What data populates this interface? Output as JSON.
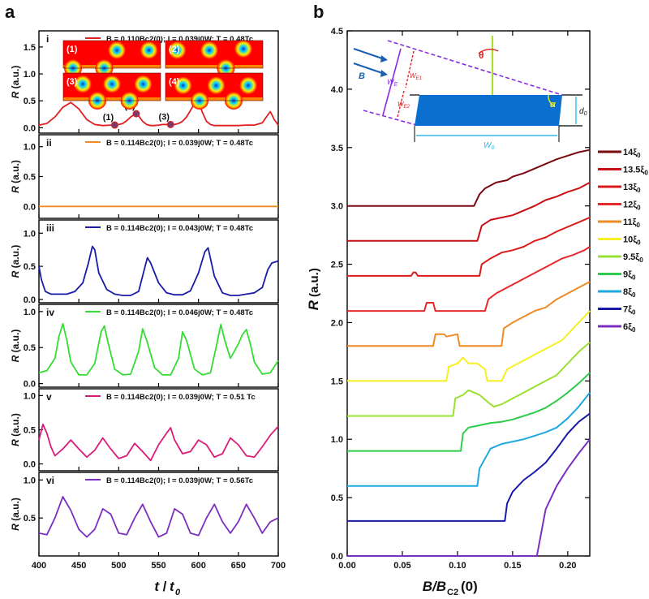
{
  "panel_a": {
    "label": "a",
    "xlabel_main": "t",
    "xlabel_sub": "0",
    "xlabel_sep": "/",
    "ylabel": "R",
    "ylabel_unit": "(a.u.)",
    "xlim": [
      400,
      700
    ],
    "xticks": [
      "400",
      "450",
      "500",
      "550",
      "600",
      "650",
      "700"
    ],
    "inset_labels": [
      "(1)",
      "(2)",
      "(3)",
      "(4)"
    ],
    "colors": {
      "inset_bg": "#ff0000",
      "inset_mid": "#ffee00",
      "inset_ring": "#00d0ff",
      "inset_core": "#1030c0"
    }
  },
  "panel_b": {
    "label": "b",
    "xlabel": "B/B",
    "xlabel_sub": "C2",
    "xlabel_tail": "(0)",
    "ylabel": "R",
    "ylabel_unit": "(a.u.)",
    "xlim": [
      0.0,
      0.22
    ],
    "ylim": [
      0.0,
      4.5
    ],
    "xticks": [
      "0.00",
      "0.05",
      "0.10",
      "0.15",
      "0.20"
    ],
    "yticks": [
      "0.0",
      "0.5",
      "1.0",
      "1.5",
      "2.0",
      "2.5",
      "3.0",
      "3.5",
      "4.0",
      "4.5"
    ],
    "schematic": {
      "B": "B",
      "theta": "θ",
      "alpha": "α",
      "WE": "W",
      "WE_sub": "E",
      "WE1": "W",
      "WE1_sub": "E1",
      "WE2": "W",
      "WE2_sub": "E2",
      "W0": "W",
      "W0_sub": "0",
      "d0": "d",
      "d0_sub": "0"
    }
  },
  "chart_data": [
    {
      "type": "line",
      "title": "i",
      "legend": "B = 0.110Bc2(0); I = 0.039j0W; T = 0.48Tc",
      "color": "#e02020",
      "xlabel": "t/t0",
      "ylabel": "R (a.u.)",
      "xlim": [
        400,
        700
      ],
      "ylim": [
        -0.1,
        1.8
      ],
      "yticks": [
        "0.0",
        "0.5",
        "1.0",
        "1.5"
      ],
      "x": [
        400,
        410,
        420,
        430,
        440,
        450,
        460,
        470,
        480,
        490,
        495,
        500,
        505,
        510,
        515,
        520,
        522,
        525,
        530,
        535,
        540,
        545,
        550,
        555,
        560,
        565,
        570,
        575,
        580,
        585,
        590,
        595,
        598,
        600,
        605,
        610,
        615,
        620,
        630,
        640,
        650,
        660,
        670,
        680,
        685,
        690,
        695,
        700
      ],
      "y": [
        0.05,
        0.08,
        0.2,
        0.38,
        0.47,
        0.35,
        0.15,
        0.06,
        0.04,
        0.05,
        0.05,
        0.06,
        0.08,
        0.13,
        0.2,
        0.25,
        0.26,
        0.22,
        0.12,
        0.06,
        0.04,
        0.04,
        0.05,
        0.06,
        0.06,
        0.06,
        0.06,
        0.08,
        0.12,
        0.2,
        0.32,
        0.45,
        0.5,
        0.48,
        0.28,
        0.12,
        0.06,
        0.04,
        0.04,
        0.04,
        0.04,
        0.05,
        0.05,
        0.09,
        0.2,
        0.3,
        0.15,
        0.05
      ],
      "markers": [
        {
          "label": "(1)",
          "x": 495,
          "y": 0.05
        },
        {
          "label": "(2)",
          "x": 522,
          "y": 0.26
        },
        {
          "label": "(3)",
          "x": 565,
          "y": 0.06
        },
        {
          "label": "(4)",
          "x": 598,
          "y": 0.5
        }
      ]
    },
    {
      "type": "line",
      "title": "ii",
      "legend": "B = 0.114Bc2(0); I = 0.039j0W; T = 0.48Tc",
      "color": "#f08a24",
      "xlabel": "t/t0",
      "ylabel": "R (a.u.)",
      "xlim": [
        400,
        700
      ],
      "ylim": [
        -0.2,
        1.2
      ],
      "yticks": [
        "0.0",
        "0.5",
        "1.0"
      ],
      "x": [
        400,
        700
      ],
      "y": [
        0.0,
        0.0
      ]
    },
    {
      "type": "line",
      "title": "iii",
      "legend": "B = 0.114Bc2(0); I = 0.043j0W; T = 0.48Tc",
      "color": "#1a1aa8",
      "xlabel": "t/t0",
      "ylabel": "R (a.u.)",
      "xlim": [
        400,
        700
      ],
      "ylim": [
        -0.05,
        1.2
      ],
      "yticks": [
        "0.0",
        "0.5",
        "1.0"
      ],
      "x": [
        400,
        403,
        408,
        415,
        425,
        435,
        445,
        455,
        462,
        467,
        470,
        475,
        485,
        495,
        505,
        515,
        525,
        532,
        536,
        540,
        550,
        560,
        570,
        580,
        590,
        600,
        608,
        612,
        620,
        630,
        640,
        650,
        660,
        670,
        680,
        687,
        692,
        700
      ],
      "y": [
        0.5,
        0.3,
        0.12,
        0.08,
        0.08,
        0.08,
        0.12,
        0.25,
        0.55,
        0.8,
        0.75,
        0.4,
        0.15,
        0.08,
        0.06,
        0.06,
        0.12,
        0.45,
        0.63,
        0.55,
        0.25,
        0.1,
        0.07,
        0.07,
        0.13,
        0.4,
        0.72,
        0.78,
        0.35,
        0.1,
        0.06,
        0.06,
        0.08,
        0.1,
        0.18,
        0.45,
        0.55,
        0.58
      ]
    },
    {
      "type": "line",
      "title": "iv",
      "legend": "B = 0.114Bc2(0); I = 0.046j0W; T = 0.48Tc",
      "color": "#33dd33",
      "xlabel": "t/t0",
      "ylabel": "R (a.u.)",
      "xlim": [
        400,
        700
      ],
      "ylim": [
        -0.05,
        1.1
      ],
      "yticks": [
        "0.0",
        "0.5",
        "1.0"
      ],
      "x": [
        400,
        410,
        420,
        425,
        430,
        435,
        440,
        450,
        460,
        470,
        478,
        482,
        487,
        495,
        505,
        515,
        525,
        530,
        535,
        545,
        555,
        565,
        575,
        580,
        585,
        595,
        605,
        615,
        623,
        628,
        633,
        640,
        650,
        655,
        660,
        665,
        670,
        680,
        690,
        700
      ],
      "y": [
        0.15,
        0.18,
        0.35,
        0.65,
        0.83,
        0.6,
        0.3,
        0.12,
        0.12,
        0.28,
        0.72,
        0.8,
        0.55,
        0.2,
        0.12,
        0.13,
        0.45,
        0.76,
        0.6,
        0.22,
        0.12,
        0.12,
        0.35,
        0.72,
        0.6,
        0.2,
        0.12,
        0.15,
        0.55,
        0.82,
        0.6,
        0.35,
        0.55,
        0.68,
        0.75,
        0.55,
        0.3,
        0.13,
        0.15,
        0.32
      ]
    },
    {
      "type": "line",
      "title": "v",
      "legend": "B = 0.114Bc2(0); I = 0.039j0W; T = 0.51 Tc",
      "color": "#d81b7a",
      "xlabel": "t/t0",
      "ylabel": "R (a.u.)",
      "xlim": [
        400,
        700
      ],
      "ylim": [
        -0.1,
        1.1
      ],
      "yticks": [
        "0.0",
        "0.5",
        "1.0"
      ],
      "x": [
        400,
        405,
        410,
        415,
        420,
        430,
        440,
        450,
        460,
        470,
        480,
        490,
        500,
        510,
        520,
        530,
        540,
        550,
        560,
        565,
        570,
        580,
        590,
        600,
        610,
        620,
        630,
        640,
        650,
        660,
        670,
        680,
        690,
        700
      ],
      "y": [
        0.35,
        0.58,
        0.45,
        0.25,
        0.12,
        0.22,
        0.35,
        0.22,
        0.1,
        0.2,
        0.38,
        0.22,
        0.08,
        0.12,
        0.3,
        0.18,
        0.05,
        0.28,
        0.45,
        0.53,
        0.35,
        0.15,
        0.18,
        0.35,
        0.28,
        0.1,
        0.15,
        0.38,
        0.28,
        0.12,
        0.1,
        0.25,
        0.42,
        0.55
      ]
    },
    {
      "type": "line",
      "title": "vi",
      "legend": "B = 0.114Bc2(0); I = 0.039j0W; T = 0.56Tc",
      "color": "#7b2fc0",
      "xlabel": "t/t0",
      "ylabel": "R (a.u.)",
      "xlim": [
        400,
        700
      ],
      "ylim": [
        0.0,
        1.1
      ],
      "yticks": [
        "0.5",
        "1.0"
      ],
      "x": [
        400,
        410,
        420,
        430,
        440,
        450,
        460,
        470,
        480,
        490,
        500,
        510,
        520,
        530,
        540,
        550,
        560,
        570,
        580,
        590,
        600,
        610,
        620,
        630,
        640,
        650,
        660,
        670,
        680,
        690,
        700
      ],
      "y": [
        0.3,
        0.28,
        0.5,
        0.78,
        0.6,
        0.35,
        0.25,
        0.35,
        0.62,
        0.55,
        0.3,
        0.28,
        0.5,
        0.68,
        0.45,
        0.25,
        0.3,
        0.62,
        0.55,
        0.3,
        0.27,
        0.5,
        0.68,
        0.45,
        0.3,
        0.45,
        0.68,
        0.5,
        0.3,
        0.45,
        0.5
      ]
    },
    {
      "type": "line",
      "title": "b",
      "xlabel": "B/BC2(0)",
      "ylabel": "R (a.u.)",
      "xlim": [
        0.0,
        0.22
      ],
      "ylim": [
        0.0,
        4.5
      ],
      "series": [
        {
          "name": "14ξ0",
          "legend_main": "14ξ",
          "legend_sub": "0",
          "color": "#7a0a10",
          "x": [
            0.0,
            0.115,
            0.12,
            0.125,
            0.135,
            0.145,
            0.15,
            0.16,
            0.17,
            0.18,
            0.19,
            0.2,
            0.21,
            0.22
          ],
          "y": [
            3.0,
            3.0,
            3.1,
            3.15,
            3.2,
            3.22,
            3.25,
            3.28,
            3.32,
            3.36,
            3.4,
            3.43,
            3.46,
            3.48
          ]
        },
        {
          "name": "13.5ξ0",
          "legend_main": "13.5ξ",
          "legend_sub": "0",
          "color": "#c80f14",
          "x": [
            0.0,
            0.118,
            0.122,
            0.13,
            0.14,
            0.15,
            0.16,
            0.17,
            0.18,
            0.19,
            0.2,
            0.21,
            0.22
          ],
          "y": [
            2.7,
            2.7,
            2.83,
            2.88,
            2.9,
            2.92,
            2.96,
            3.0,
            3.05,
            3.08,
            3.12,
            3.15,
            3.2
          ]
        },
        {
          "name": "13ξ0",
          "legend_main": "13ξ",
          "legend_sub": "0",
          "color": "#dd1a1a",
          "x": [
            0.0,
            0.058,
            0.06,
            0.062,
            0.064,
            0.12,
            0.122,
            0.13,
            0.14,
            0.15,
            0.16,
            0.17,
            0.18,
            0.19,
            0.2,
            0.21,
            0.22
          ],
          "y": [
            2.4,
            2.4,
            2.43,
            2.43,
            2.4,
            2.4,
            2.5,
            2.55,
            2.6,
            2.62,
            2.65,
            2.7,
            2.73,
            2.78,
            2.82,
            2.86,
            2.9
          ]
        },
        {
          "name": "12ξ0",
          "legend_main": "12ξ",
          "legend_sub": "0",
          "color": "#e8282a",
          "x": [
            0.0,
            0.07,
            0.072,
            0.078,
            0.08,
            0.125,
            0.128,
            0.135,
            0.145,
            0.155,
            0.165,
            0.175,
            0.185,
            0.195,
            0.205,
            0.215,
            0.22
          ],
          "y": [
            2.1,
            2.1,
            2.17,
            2.17,
            2.1,
            2.1,
            2.2,
            2.25,
            2.3,
            2.35,
            2.4,
            2.45,
            2.5,
            2.55,
            2.58,
            2.62,
            2.65
          ]
        },
        {
          "name": "11ξ0",
          "legend_main": "11ξ",
          "legend_sub": "0",
          "color": "#f08a24",
          "x": [
            0.0,
            0.078,
            0.08,
            0.088,
            0.09,
            0.1,
            0.102,
            0.14,
            0.142,
            0.15,
            0.16,
            0.17,
            0.18,
            0.19,
            0.2,
            0.21,
            0.22
          ],
          "y": [
            1.8,
            1.8,
            1.9,
            1.9,
            1.88,
            1.9,
            1.8,
            1.8,
            1.95,
            2.0,
            2.05,
            2.1,
            2.13,
            2.2,
            2.25,
            2.3,
            2.35
          ]
        },
        {
          "name": "10ξ0",
          "legend_main": "10ξ",
          "legend_sub": "0",
          "color": "#f5f022",
          "x": [
            0.0,
            0.09,
            0.092,
            0.1,
            0.105,
            0.11,
            0.118,
            0.125,
            0.127,
            0.14,
            0.145,
            0.155,
            0.165,
            0.175,
            0.185,
            0.195,
            0.205,
            0.215,
            0.22
          ],
          "y": [
            1.5,
            1.5,
            1.62,
            1.65,
            1.7,
            1.65,
            1.65,
            1.6,
            1.5,
            1.5,
            1.6,
            1.65,
            1.7,
            1.75,
            1.8,
            1.85,
            1.95,
            2.05,
            2.1
          ]
        },
        {
          "name": "9.5ξ0",
          "legend_main": "9.5ξ",
          "legend_sub": "0",
          "color": "#9ae030",
          "x": [
            0.0,
            0.096,
            0.098,
            0.105,
            0.11,
            0.115,
            0.12,
            0.13,
            0.133,
            0.14,
            0.15,
            0.16,
            0.17,
            0.18,
            0.19,
            0.2,
            0.21,
            0.22
          ],
          "y": [
            1.2,
            1.2,
            1.35,
            1.38,
            1.42,
            1.4,
            1.38,
            1.3,
            1.28,
            1.3,
            1.35,
            1.4,
            1.45,
            1.5,
            1.55,
            1.65,
            1.75,
            1.83
          ]
        },
        {
          "name": "9ξ0",
          "legend_main": "9ξ",
          "legend_sub": "0",
          "color": "#2ecc4a",
          "x": [
            0.0,
            0.103,
            0.105,
            0.11,
            0.12,
            0.13,
            0.14,
            0.15,
            0.16,
            0.17,
            0.18,
            0.19,
            0.2,
            0.21,
            0.22
          ],
          "y": [
            0.9,
            0.9,
            1.05,
            1.1,
            1.12,
            1.14,
            1.15,
            1.17,
            1.2,
            1.23,
            1.27,
            1.33,
            1.4,
            1.48,
            1.57
          ]
        },
        {
          "name": "8ξ0",
          "legend_main": "8ξ",
          "legend_sub": "0",
          "color": "#1ea8e0",
          "x": [
            0.0,
            0.118,
            0.12,
            0.13,
            0.14,
            0.15,
            0.16,
            0.17,
            0.18,
            0.19,
            0.2,
            0.21,
            0.22
          ],
          "y": [
            0.6,
            0.6,
            0.75,
            0.92,
            0.96,
            0.98,
            1.0,
            1.03,
            1.06,
            1.1,
            1.18,
            1.28,
            1.4
          ]
        },
        {
          "name": "7ξ0",
          "legend_main": "7ξ",
          "legend_sub": "0",
          "color": "#1a1aa8",
          "x": [
            0.0,
            0.143,
            0.145,
            0.15,
            0.16,
            0.17,
            0.18,
            0.19,
            0.2,
            0.21,
            0.22
          ],
          "y": [
            0.3,
            0.3,
            0.45,
            0.55,
            0.65,
            0.72,
            0.8,
            0.92,
            1.05,
            1.15,
            1.22
          ]
        },
        {
          "name": "6ξ0",
          "legend_main": "6ξ",
          "legend_sub": "0",
          "color": "#7b2fc0",
          "x": [
            0.0,
            0.172,
            0.176,
            0.18,
            0.19,
            0.2,
            0.21,
            0.22
          ],
          "y": [
            0.0,
            0.0,
            0.2,
            0.4,
            0.6,
            0.75,
            0.88,
            1.0
          ]
        }
      ]
    }
  ]
}
